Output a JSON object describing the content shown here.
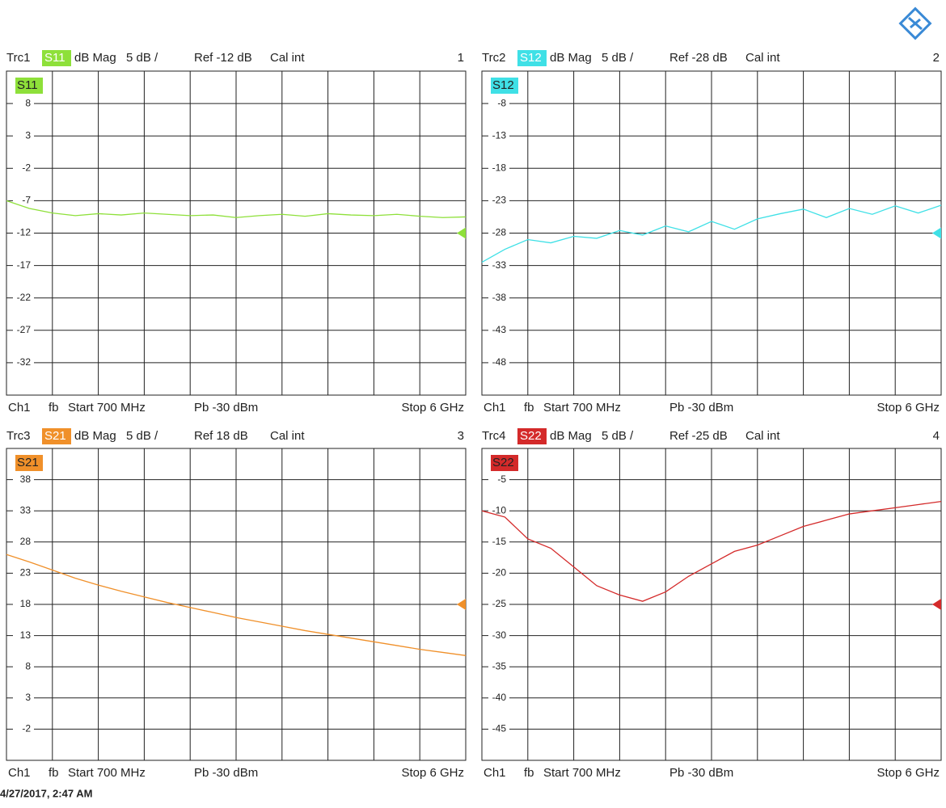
{
  "chart_data": [
    {
      "type": "line",
      "trace": "Trc1",
      "format": "dB Mag",
      "scale": "5 dB /",
      "reference": {
        "value": -12,
        "label": "Ref -12 dB"
      },
      "cal": "Cal int",
      "number": "1",
      "channel": "Ch1",
      "mode": "fb",
      "start": "Start 700 MHz",
      "power": "Pb -30 dBm",
      "stop": "Stop 6 GHz",
      "xlim": [
        0.7,
        6
      ],
      "ylim": [
        -37,
        13
      ],
      "yticks": [
        8,
        3,
        -2,
        -7,
        -12,
        -17,
        -22,
        -27,
        -32
      ],
      "grid": true,
      "x": [
        0.7,
        0.965,
        1.23,
        1.495,
        1.76,
        2.025,
        2.29,
        2.555,
        2.82,
        3.085,
        3.35,
        3.615,
        3.88,
        4.145,
        4.41,
        4.675,
        4.94,
        5.205,
        5.47,
        5.735,
        6.0
      ],
      "series": [
        {
          "name": "S11",
          "color": "#8ee03a",
          "values": [
            -7.0,
            -8.2,
            -8.9,
            -9.3,
            -9.0,
            -9.2,
            -8.9,
            -9.1,
            -9.3,
            -9.2,
            -9.6,
            -9.3,
            -9.1,
            -9.4,
            -9.0,
            -9.2,
            -9.3,
            -9.1,
            -9.4,
            -9.6,
            -9.5
          ]
        }
      ]
    },
    {
      "type": "line",
      "trace": "Trc2",
      "format": "dB Mag",
      "scale": "5 dB /",
      "reference": {
        "value": -28,
        "label": "Ref -28 dB"
      },
      "cal": "Cal int",
      "number": "2",
      "channel": "Ch1",
      "mode": "fb",
      "start": "Start 700 MHz",
      "power": "Pb -30 dBm",
      "stop": "Stop 6 GHz",
      "xlim": [
        0.7,
        6
      ],
      "ylim": [
        -53,
        -3
      ],
      "yticks": [
        -8,
        -13,
        -18,
        -23,
        -28,
        -33,
        -38,
        -43,
        -48
      ],
      "grid": true,
      "x": [
        0.7,
        0.965,
        1.23,
        1.495,
        1.76,
        2.025,
        2.29,
        2.555,
        2.82,
        3.085,
        3.35,
        3.615,
        3.88,
        4.145,
        4.41,
        4.675,
        4.94,
        5.205,
        5.47,
        5.735,
        6.0
      ],
      "series": [
        {
          "name": "S12",
          "color": "#3fe0e6",
          "values": [
            -32.5,
            -30.5,
            -29.0,
            -29.5,
            -28.5,
            -28.8,
            -27.6,
            -28.3,
            -26.9,
            -27.8,
            -26.2,
            -27.4,
            -25.8,
            -25.0,
            -24.3,
            -25.6,
            -24.2,
            -25.1,
            -23.8,
            -24.9,
            -23.7
          ]
        }
      ]
    },
    {
      "type": "line",
      "trace": "Trc3",
      "format": "dB Mag",
      "scale": "5 dB /",
      "reference": {
        "value": 18,
        "label": "Ref 18 dB"
      },
      "cal": "Cal int",
      "number": "3",
      "channel": "Ch1",
      "mode": "fb",
      "start": "Start 700 MHz",
      "power": "Pb -30 dBm",
      "stop": "Stop 6 GHz",
      "xlim": [
        0.7,
        6
      ],
      "ylim": [
        -7,
        43
      ],
      "yticks": [
        38,
        33,
        28,
        23,
        18,
        13,
        8,
        3,
        -2
      ],
      "grid": true,
      "x": [
        0.7,
        0.965,
        1.23,
        1.495,
        1.76,
        2.025,
        2.29,
        2.555,
        2.82,
        3.085,
        3.35,
        3.615,
        3.88,
        4.145,
        4.41,
        4.675,
        4.94,
        5.205,
        5.47,
        5.735,
        6.0
      ],
      "series": [
        {
          "name": "S21",
          "color": "#f0902a",
          "values": [
            26.0,
            24.8,
            23.5,
            22.2,
            21.1,
            20.1,
            19.2,
            18.3,
            17.5,
            16.7,
            15.9,
            15.2,
            14.5,
            13.8,
            13.2,
            12.6,
            12.0,
            11.4,
            10.8,
            10.3,
            9.8
          ]
        }
      ]
    },
    {
      "type": "line",
      "trace": "Trc4",
      "format": "dB Mag",
      "scale": "5 dB /",
      "reference": {
        "value": -25,
        "label": "Ref -25 dB"
      },
      "cal": "Cal int",
      "number": "4",
      "channel": "Ch1",
      "mode": "fb",
      "start": "Start 700 MHz",
      "power": "Pb -30 dBm",
      "stop": "Stop 6 GHz",
      "xlim": [
        0.7,
        6
      ],
      "ylim": [
        -50,
        0
      ],
      "yticks": [
        -5,
        -10,
        -15,
        -20,
        -25,
        -30,
        -35,
        -40,
        -45
      ],
      "grid": true,
      "x": [
        0.7,
        0.965,
        1.23,
        1.495,
        1.76,
        2.025,
        2.29,
        2.555,
        2.82,
        3.085,
        3.35,
        3.615,
        3.88,
        4.145,
        4.41,
        4.675,
        4.94,
        5.205,
        5.47,
        5.735,
        6.0
      ],
      "series": [
        {
          "name": "S22",
          "color": "#d42a2a",
          "values": [
            -10.0,
            -11.0,
            -14.5,
            -16.0,
            -19.0,
            -22.0,
            -23.5,
            -24.5,
            -23.0,
            -20.5,
            -18.5,
            -16.5,
            -15.5,
            -14.0,
            -12.5,
            -11.5,
            -10.5,
            -10.0,
            -9.5,
            -9.0,
            -8.5
          ]
        }
      ]
    }
  ],
  "timestamp": "4/27/2017, 2:47 AM"
}
